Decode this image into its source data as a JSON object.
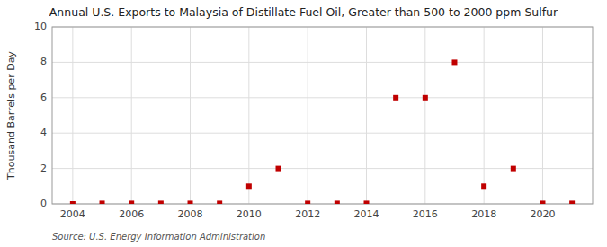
{
  "chart_data": {
    "type": "scatter",
    "title": "Annual U.S. Exports to Malaysia of Distillate Fuel Oil, Greater than 500 to 2000 ppm Sulfur",
    "y_label": "Thousand Barrels per Day",
    "source": "Source: U.S. Energy Information Administration",
    "x": [
      2004,
      2005,
      2006,
      2007,
      2008,
      2009,
      2010,
      2011,
      2012,
      2013,
      2014,
      2015,
      2016,
      2017,
      2018,
      2019,
      2020,
      2021
    ],
    "values": [
      0,
      0.03,
      0.03,
      0.03,
      0.03,
      0.03,
      1,
      2,
      0.03,
      0.03,
      0.03,
      6,
      6,
      8,
      1,
      2,
      0.03,
      0.03
    ],
    "color": "#c00000",
    "marker": "square",
    "xlim": [
      2003.3,
      2021.7
    ],
    "xticks": [
      2004,
      2006,
      2008,
      2010,
      2012,
      2014,
      2016,
      2018,
      2020
    ],
    "ylim": [
      0,
      10
    ],
    "yticks": [
      0,
      2,
      4,
      6,
      8,
      10
    ],
    "grid": true
  }
}
